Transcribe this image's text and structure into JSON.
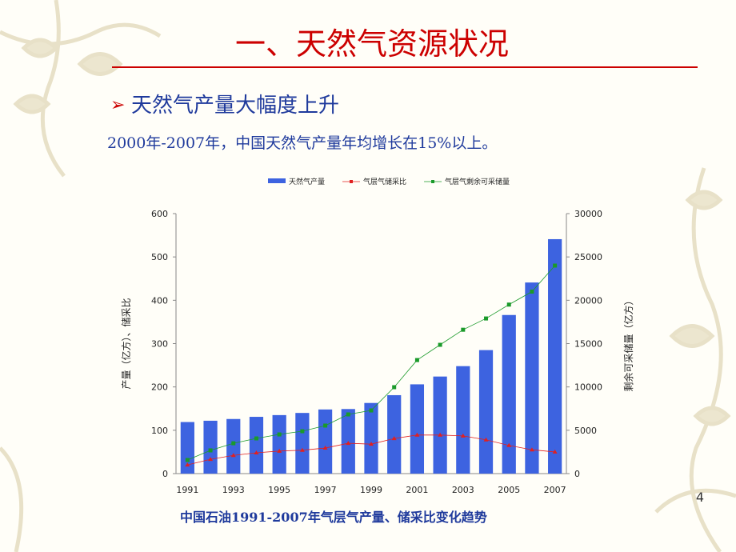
{
  "slide": {
    "title": "一、天然气资源状况",
    "bullet": "天然气产量大幅度上升",
    "text": "2000年-2007年，中国天然气产量年均增长在15%以上。",
    "caption": "中国石油1991-2007年气层气产量、储采比变化趋势",
    "page_number": 4
  },
  "chart_data": {
    "type": "bar",
    "categories": [
      "1991",
      null,
      "1993",
      null,
      "1995",
      null,
      "1997",
      null,
      "1999",
      null,
      "2001",
      null,
      "2003",
      null,
      "2005",
      null,
      "2007"
    ],
    "y_label": "产量（亿方）、储采比",
    "y2_label": "剩余可采储量（亿方）",
    "ylim": [
      0,
      600
    ],
    "yticks": [
      0,
      100,
      200,
      300,
      400,
      500,
      600
    ],
    "y2lim": [
      0,
      30000
    ],
    "y2ticks": [
      0,
      5000,
      10000,
      15000,
      20000,
      25000,
      30000
    ],
    "grid": false,
    "legend": "top",
    "series": [
      {
        "name": "天然气产量",
        "type": "bar",
        "color": "#3d63e0",
        "values": [
          119,
          122,
          126,
          131,
          135,
          140,
          148,
          149,
          163,
          181,
          206,
          224,
          248,
          285,
          366,
          441,
          541
        ]
      },
      {
        "name": "气层气储采比",
        "type": "line",
        "color": "#e02020",
        "values": [
          20,
          33,
          42,
          48,
          52,
          54,
          59,
          70,
          68,
          81,
          89,
          89,
          87,
          78,
          65,
          55,
          50
        ]
      },
      {
        "name": "气层气剩余可采储量",
        "type": "line",
        "axis": "y2",
        "color": "#1a9a2a",
        "values": [
          1570,
          2680,
          3500,
          4060,
          4520,
          4890,
          5540,
          6830,
          7290,
          9970,
          13100,
          14860,
          16600,
          17900,
          19500,
          21000,
          24000
        ]
      }
    ]
  }
}
